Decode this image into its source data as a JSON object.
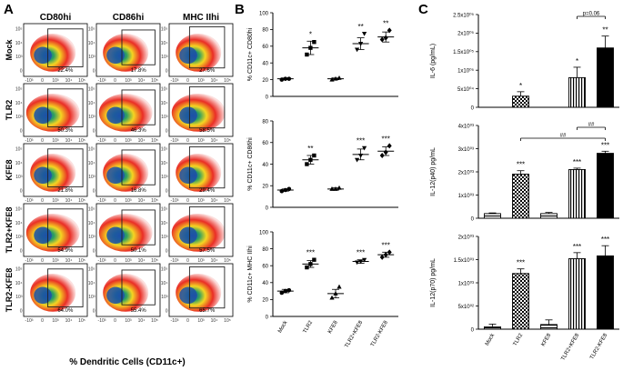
{
  "panel_letters": {
    "a": "A",
    "b": "B",
    "c": "C"
  },
  "panel_a": {
    "columns": [
      "CD80hi",
      "CD86hi",
      "MHC IIhi"
    ],
    "rows": [
      "Mock",
      "TLR2",
      "KFE8",
      "TLR2+KFE8",
      "TLR2-KFE8"
    ],
    "percents": [
      [
        "22.4%",
        "17.8%",
        "27.6%"
      ],
      [
        "50.3%",
        "46.3%",
        "58.5%"
      ],
      [
        "21.8%",
        "16.8%",
        "29.4%"
      ],
      [
        "54.9%",
        "50.1%",
        "57.5%"
      ],
      [
        "64.0%",
        "55.4%",
        "65.7%"
      ]
    ],
    "xtick_labels": [
      "-10³",
      "0",
      "10³",
      "10⁴",
      "10⁵"
    ],
    "ytick_labels": [
      "10⁵",
      "10⁴",
      "10³",
      "0"
    ],
    "xlabel": "% Dendritic Cells (CD11c+)"
  },
  "chart_data": [
    {
      "type": "scatter",
      "panel": "B",
      "title": "",
      "ylabel": "% CD11c+ CD80hi",
      "categories": [
        "Mock",
        "TLR2",
        "KFE8",
        "TLR2+KFE8",
        "TLR2-KFE8"
      ],
      "ylim": [
        0,
        100
      ],
      "yticks": [
        0,
        20,
        40,
        60,
        80,
        100
      ],
      "means": [
        21,
        58,
        21,
        63,
        71
      ],
      "sem": [
        1,
        8,
        1,
        7,
        6
      ],
      "points": [
        [
          20,
          21,
          21
        ],
        [
          50,
          58,
          65
        ],
        [
          20,
          21,
          22
        ],
        [
          56,
          63,
          75
        ],
        [
          68,
          70,
          79
        ]
      ],
      "markers": [
        "circle",
        "square",
        "triangle",
        "triangle-down",
        "diamond"
      ],
      "significance": [
        "",
        "*",
        "",
        "**",
        "**"
      ]
    },
    {
      "type": "scatter",
      "panel": "B",
      "title": "",
      "ylabel": "% CD11c+ CD86hi",
      "categories": [
        "Mock",
        "TLR2",
        "KFE8",
        "TLR2+KFE8",
        "TLR2-KFE8"
      ],
      "ylim": [
        0,
        80
      ],
      "yticks": [
        0,
        20,
        40,
        60,
        80
      ],
      "means": [
        16,
        44,
        17,
        49,
        52
      ],
      "sem": [
        1,
        4,
        1,
        5,
        4
      ],
      "points": [
        [
          15,
          16,
          17
        ],
        [
          40,
          44,
          48
        ],
        [
          17,
          17,
          18
        ],
        [
          44,
          48,
          55
        ],
        [
          48,
          51,
          57
        ]
      ],
      "markers": [
        "circle",
        "square",
        "triangle",
        "triangle-down",
        "diamond"
      ],
      "significance": [
        "",
        "**",
        "",
        "***",
        "***"
      ]
    },
    {
      "type": "scatter",
      "panel": "B",
      "title": "",
      "ylabel": "% CD11c+ MHC IIhi",
      "categories": [
        "Mock",
        "TLR2",
        "KFE8",
        "TLR2+KFE8",
        "TLR2-KFE8"
      ],
      "ylim": [
        0,
        100
      ],
      "yticks": [
        0,
        20,
        40,
        60,
        80,
        100
      ],
      "means": [
        30,
        62,
        27,
        65,
        73
      ],
      "sem": [
        2,
        4,
        5,
        2,
        3
      ],
      "points": [
        [
          28,
          30,
          31
        ],
        [
          58,
          62,
          67
        ],
        [
          22,
          27,
          35
        ],
        [
          64,
          65,
          67
        ],
        [
          70,
          73,
          76
        ]
      ],
      "markers": [
        "circle",
        "square",
        "triangle",
        "triangle-down",
        "diamond"
      ],
      "significance": [
        "",
        "***",
        "",
        "***",
        "***"
      ]
    },
    {
      "type": "bar",
      "panel": "C",
      "title": "",
      "ylabel": "IL-6 (pg/mL)",
      "categories": [
        "Mock",
        "TLR2",
        "KFE8",
        "TLR2+KFE8",
        "TLR2-KFE8"
      ],
      "ylim": [
        0,
        250000
      ],
      "yticks": [
        0,
        50000,
        100000,
        150000,
        200000,
        250000
      ],
      "ytick_labels": [
        "0",
        "5x10⁰⁴",
        "1x10⁰⁵",
        "1.5x10⁰⁵",
        "2x10⁰⁵",
        "2.5x10⁰⁵"
      ],
      "values": [
        0,
        30000,
        0,
        80000,
        160000
      ],
      "errors": [
        0,
        12000,
        0,
        28000,
        32000
      ],
      "significance": [
        "",
        "*",
        "",
        "*",
        "**"
      ],
      "brackets": [
        {
          "from": 3,
          "to": 4,
          "label": "p=0.06"
        }
      ]
    },
    {
      "type": "bar",
      "panel": "C",
      "title": "",
      "ylabel": "IL-12(p40) pg/mL",
      "categories": [
        "Mock",
        "TLR2",
        "KFE8",
        "TLR2+KFE8",
        "TLR2-KFE8"
      ],
      "ylim": [
        0,
        4000
      ],
      "yticks": [
        0,
        1000,
        2000,
        3000,
        4000
      ],
      "ytick_labels": [
        "0",
        "1x10⁰³",
        "2x10⁰³",
        "3x10⁰³",
        "4x10⁰³"
      ],
      "values": [
        200,
        1900,
        200,
        2100,
        2800
      ],
      "errors": [
        30,
        150,
        50,
        60,
        90
      ],
      "significance": [
        "",
        "***",
        "",
        "***",
        "***"
      ],
      "brackets": [
        {
          "from": 3,
          "to": 4,
          "label": "##"
        },
        {
          "from": 1,
          "to": 4,
          "label": "##"
        }
      ]
    },
    {
      "type": "bar",
      "panel": "C",
      "title": "",
      "ylabel": "IL-12(p70) pg/mL",
      "categories": [
        "Mock",
        "TLR2",
        "KFE8",
        "TLR2+KFE8",
        "TLR2-KFE8"
      ],
      "ylim": [
        0,
        2000
      ],
      "yticks": [
        0,
        500,
        1000,
        1500,
        2000
      ],
      "ytick_labels": [
        "0",
        "5x10⁰²",
        "1x10⁰³",
        "1.5x10⁰³",
        "2x10⁰³"
      ],
      "values": [
        50,
        1200,
        100,
        1520,
        1580
      ],
      "errors": [
        60,
        100,
        100,
        130,
        220
      ],
      "significance": [
        "",
        "***",
        "",
        "***",
        "***"
      ],
      "brackets": []
    }
  ],
  "colors": {
    "axis": "#000000",
    "bar_fill": "#ffffff",
    "bar_solid": "#000000",
    "density_outer": "#e8231a",
    "density_mid": "#f4d316",
    "density_inner": "#1f9a5a",
    "density_core": "#1b4fa8",
    "gate": "#222222"
  }
}
